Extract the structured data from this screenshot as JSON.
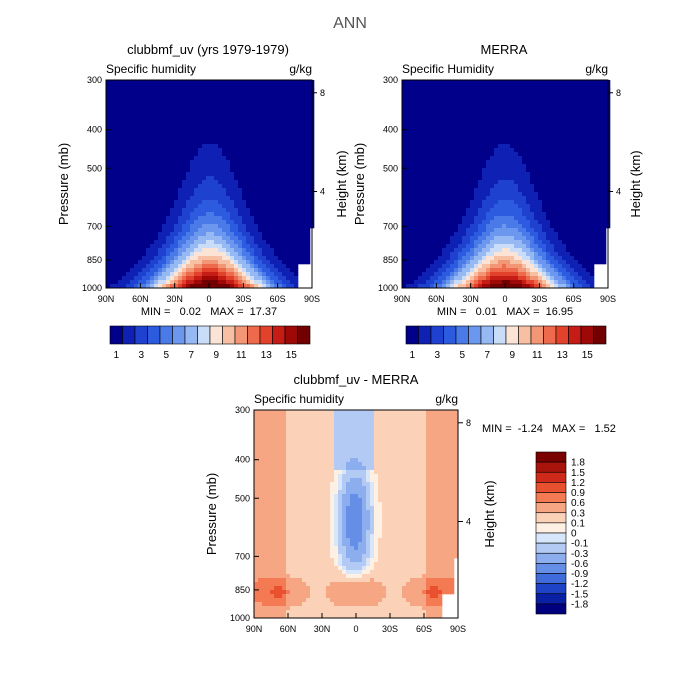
{
  "figure_title": "ANN",
  "chart_data": [
    {
      "type": "heatmap",
      "title": "clubbmf_uv (yrs 1979-1979)",
      "subtitle": "Specific humidity",
      "units": "g/kg",
      "xlabel": "",
      "ylabel": "Pressure (mb)",
      "y2label": "Height (km)",
      "xticklabels": [
        "90N",
        "60N",
        "30N",
        "0",
        "30S",
        "60S",
        "90S"
      ],
      "yticklabels": [
        "300",
        "400",
        "500",
        "700",
        "850",
        "1000"
      ],
      "yticks": [
        300,
        400,
        500,
        700,
        850,
        1000
      ],
      "y2ticklabels": [
        "8",
        "4"
      ],
      "y2ticks": [
        8,
        4
      ],
      "ylim": [
        1000,
        300
      ],
      "xlim": [
        90,
        -90
      ],
      "stats": "MIN =   0.02   MAX =  17.37",
      "colorbar": {
        "orientation": "horizontal",
        "labels": [
          "1",
          "3",
          "5",
          "7",
          "9",
          "11",
          "13",
          "15"
        ]
      },
      "peak_center_lat": 0,
      "peak_level_mb": 960
    },
    {
      "type": "heatmap",
      "title": "MERRA",
      "subtitle": "Specific Humidity",
      "units": "g/kg",
      "xlabel": "",
      "ylabel": "Pressure (mb)",
      "y2label": "Height (km)",
      "xticklabels": [
        "90N",
        "60N",
        "30N",
        "0",
        "30S",
        "60S",
        "90S"
      ],
      "yticklabels": [
        "300",
        "400",
        "500",
        "700",
        "850",
        "1000"
      ],
      "yticks": [
        300,
        400,
        500,
        700,
        850,
        1000
      ],
      "y2ticklabels": [
        "8",
        "4"
      ],
      "y2ticks": [
        8,
        4
      ],
      "ylim": [
        1000,
        300
      ],
      "xlim": [
        90,
        -90
      ],
      "stats": "MIN =   0.01   MAX =  16.95",
      "colorbar": {
        "orientation": "horizontal",
        "labels": [
          "1",
          "3",
          "5",
          "7",
          "9",
          "11",
          "13",
          "15"
        ]
      },
      "peak_center_lat": 0,
      "peak_level_mb": 960
    },
    {
      "type": "heatmap",
      "title": "clubbmf_uv - MERRA",
      "subtitle": "Specific humidity",
      "units": "g/kg",
      "xlabel": "",
      "ylabel": "Pressure (mb)",
      "y2label": "Height (km)",
      "xticklabels": [
        "90N",
        "60N",
        "30N",
        "0",
        "30S",
        "60S",
        "90S"
      ],
      "yticklabels": [
        "300",
        "400",
        "500",
        "700",
        "850",
        "1000"
      ],
      "yticks": [
        300,
        400,
        500,
        700,
        850,
        1000
      ],
      "y2ticklabels": [
        "8",
        "4"
      ],
      "y2ticks": [
        8,
        4
      ],
      "ylim": [
        1000,
        300
      ],
      "xlim": [
        90,
        -90
      ],
      "stats": "MIN =  -1.24   MAX =   1.52",
      "colorbar": {
        "orientation": "vertical",
        "labels": [
          "1.8",
          "1.5",
          "1.2",
          "0.9",
          "0.6",
          "0.3",
          "0.1",
          "0",
          "-0.1",
          "-0.3",
          "-0.6",
          "-0.9",
          "-1.2",
          "-1.5",
          "-1.8"
        ]
      }
    }
  ],
  "colors": {
    "seq": [
      "#00008a",
      "#0f21b5",
      "#1f41cf",
      "#2c5be0",
      "#4a7ae8",
      "#6c97ef",
      "#96b9f4",
      "#c9ddf8",
      "#fbe4d6",
      "#f8c0a3",
      "#f39676",
      "#ed6a4d",
      "#e2412b",
      "#c51d15",
      "#9e0908",
      "#720000"
    ],
    "diff": [
      "#7a0000",
      "#a8130c",
      "#cf2a19",
      "#e9502f",
      "#f47a54",
      "#f7a684",
      "#fbd2b8",
      "#fff0e4",
      "#d8e6fb",
      "#b3cbf4",
      "#8cadee",
      "#658fe6",
      "#3f6bdb",
      "#1f43c6",
      "#0a20a4",
      "#00007e"
    ]
  }
}
